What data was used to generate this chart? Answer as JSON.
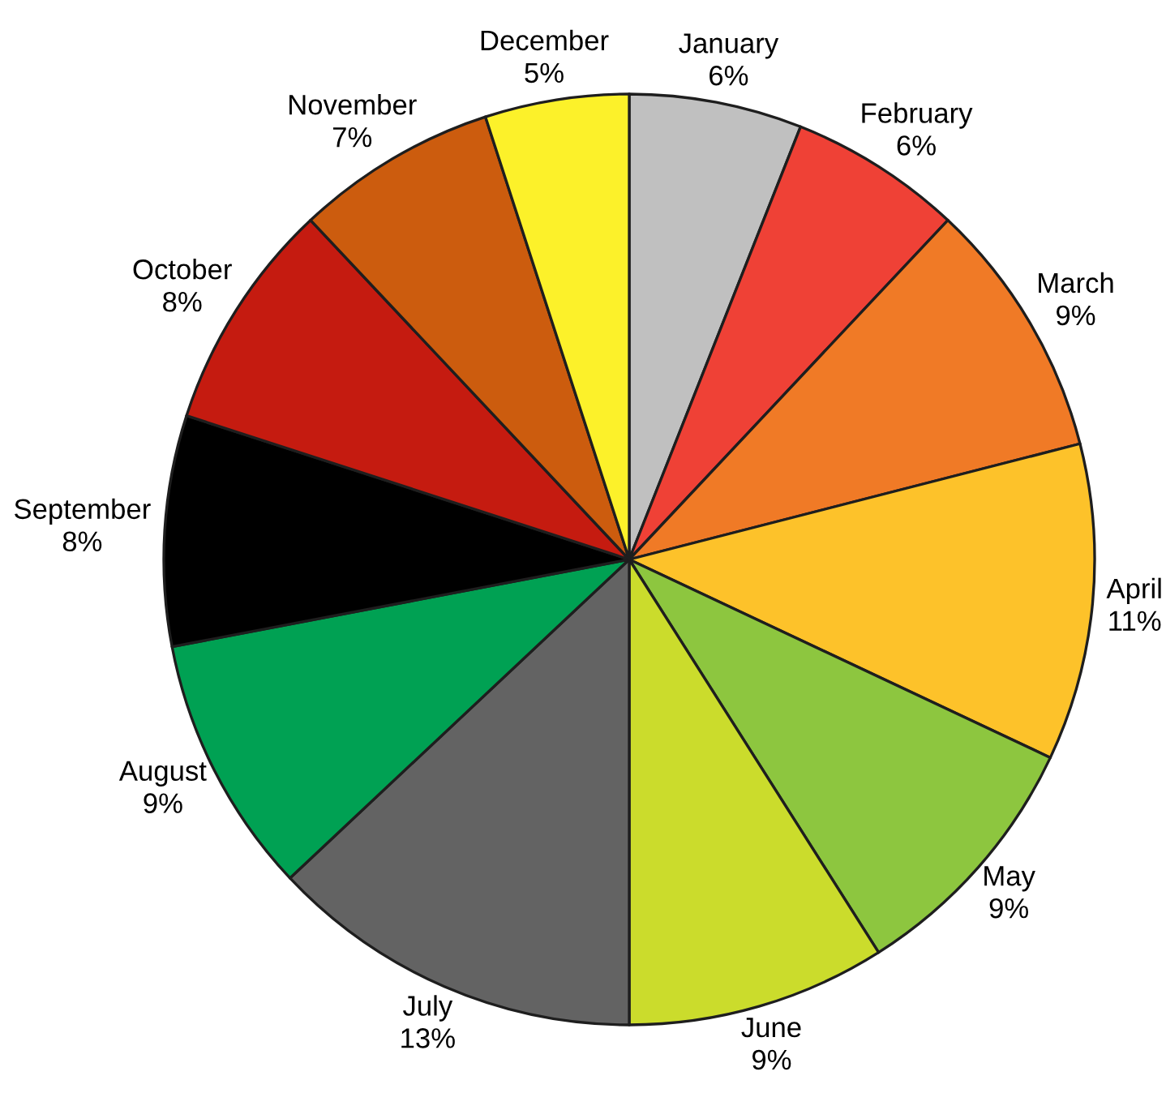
{
  "chart_data": {
    "type": "pie",
    "categories": [
      "January",
      "February",
      "March",
      "April",
      "May",
      "June",
      "July",
      "August",
      "September",
      "October",
      "November",
      "December"
    ],
    "values": [
      6,
      6,
      9,
      11,
      9,
      9,
      13,
      9,
      8,
      8,
      7,
      5
    ],
    "value_labels": [
      "6%",
      "6%",
      "9%",
      "11%",
      "9%",
      "9%",
      "13%",
      "9%",
      "8%",
      "8%",
      "7%",
      "5%"
    ],
    "colors": [
      "#c0c0c0",
      "#ef4136",
      "#f07a26",
      "#fdc22a",
      "#8dc63f",
      "#cbdc2c",
      "#636363",
      "#00a153",
      "#000000",
      "#c51b10",
      "#cc5c0e",
      "#fcf12a"
    ],
    "legend": false
  }
}
